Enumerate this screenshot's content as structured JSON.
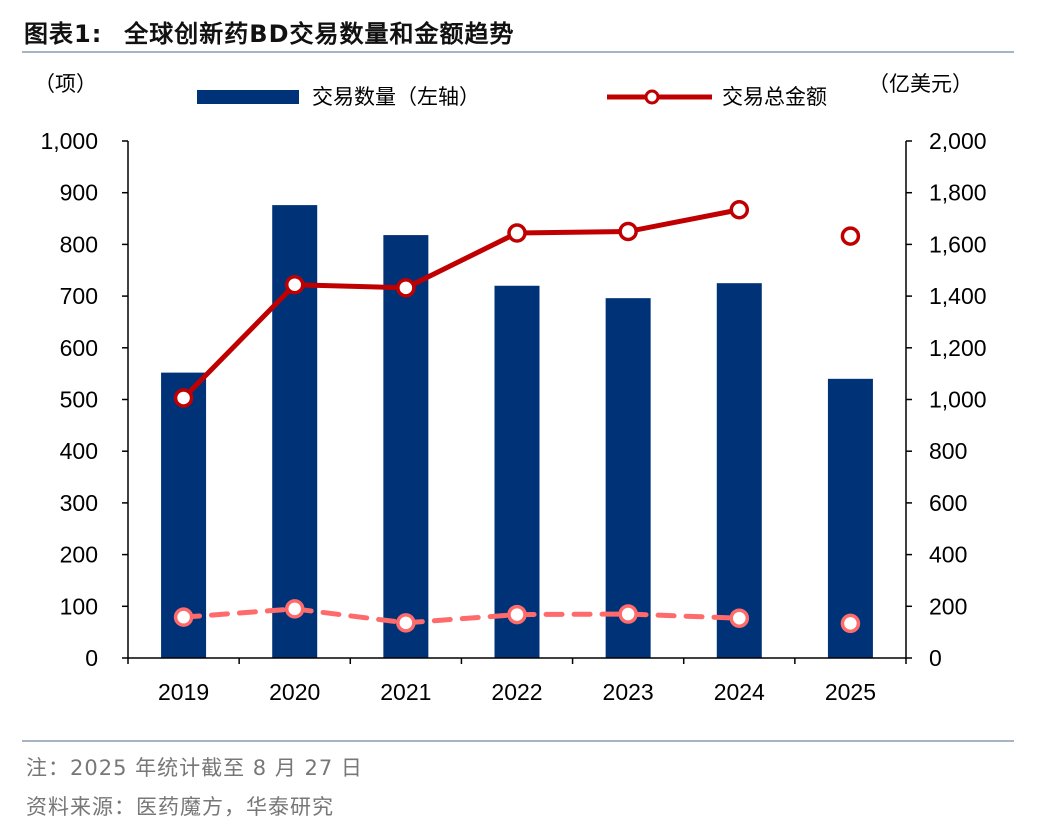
{
  "figure": {
    "label": "图表1:",
    "title": "全球创新药BD交易数量和金额趋势",
    "note": "注：2025 年统计截至 8 月 27 日",
    "source": "资料来源：医药魔方，华泰研究"
  },
  "colors": {
    "bar": "#003278",
    "line_total": "#c00000",
    "line_dashed": "#ff6b6b",
    "marker_fill": "#ffffff",
    "axis": "#000000",
    "rule": "#a7b4c3"
  },
  "chart_data": {
    "type": "bar+line",
    "left_axis": {
      "unit_label": "（项）",
      "min": 0,
      "max": 1000,
      "step": 100,
      "tick_labels": [
        "0",
        "100",
        "200",
        "300",
        "400",
        "500",
        "600",
        "700",
        "800",
        "900",
        "1,000"
      ]
    },
    "right_axis": {
      "unit_label": "（亿美元）",
      "min": 0,
      "max": 2000,
      "step": 200,
      "tick_labels": [
        "0",
        "200",
        "400",
        "600",
        "800",
        "1,000",
        "1,200",
        "1,400",
        "1,600",
        "1,800",
        "2,000"
      ]
    },
    "categories": [
      "2019",
      "2020",
      "2021",
      "2022",
      "2023",
      "2024",
      "2025"
    ],
    "series": [
      {
        "name": "交易数量（左轴）",
        "type": "bar",
        "axis": "left",
        "values": [
          552,
          876,
          818,
          720,
          696,
          725,
          540
        ]
      },
      {
        "name": "交易总金额",
        "type": "line",
        "axis": "right",
        "values": [
          1006,
          1444,
          1432,
          1644,
          1650,
          1734,
          null
        ],
        "extra_point": {
          "category": "2025",
          "value": 1632
        }
      },
      {
        "name": "",
        "type": "line-dashed",
        "axis": "right",
        "values": [
          158,
          190,
          136,
          168,
          170,
          154,
          null
        ],
        "extra_point": {
          "category": "2025",
          "value": 134
        }
      }
    ],
    "legend": {
      "placement": "top",
      "bar_label": "交易数量（左轴）",
      "line_label": "交易总金额"
    }
  }
}
